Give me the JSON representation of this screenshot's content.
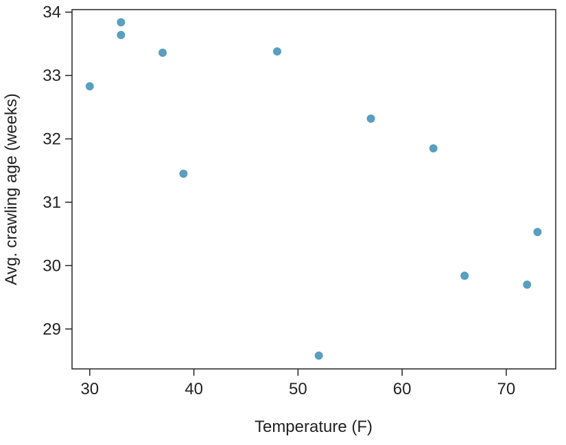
{
  "chart_data": {
    "type": "scatter",
    "x_label": "Temperature (F)",
    "y_label": "Avg. crawling age (weeks)",
    "series": [
      {
        "color": "#5a9ec0",
        "x": [
          30,
          33,
          33,
          37,
          39,
          48,
          52,
          57,
          63,
          66,
          72,
          73
        ],
        "values": [
          32.83,
          33.84,
          33.64,
          33.36,
          31.45,
          33.38,
          28.58,
          32.32,
          31.85,
          29.84,
          29.7,
          30.53
        ]
      }
    ],
    "xlim": [
      28.3,
      74.75
    ],
    "ylim": [
      28.37,
      34.04
    ],
    "xticks": [
      30,
      40,
      50,
      60,
      70
    ],
    "yticks": [
      29,
      30,
      31,
      32,
      33,
      34
    ]
  }
}
